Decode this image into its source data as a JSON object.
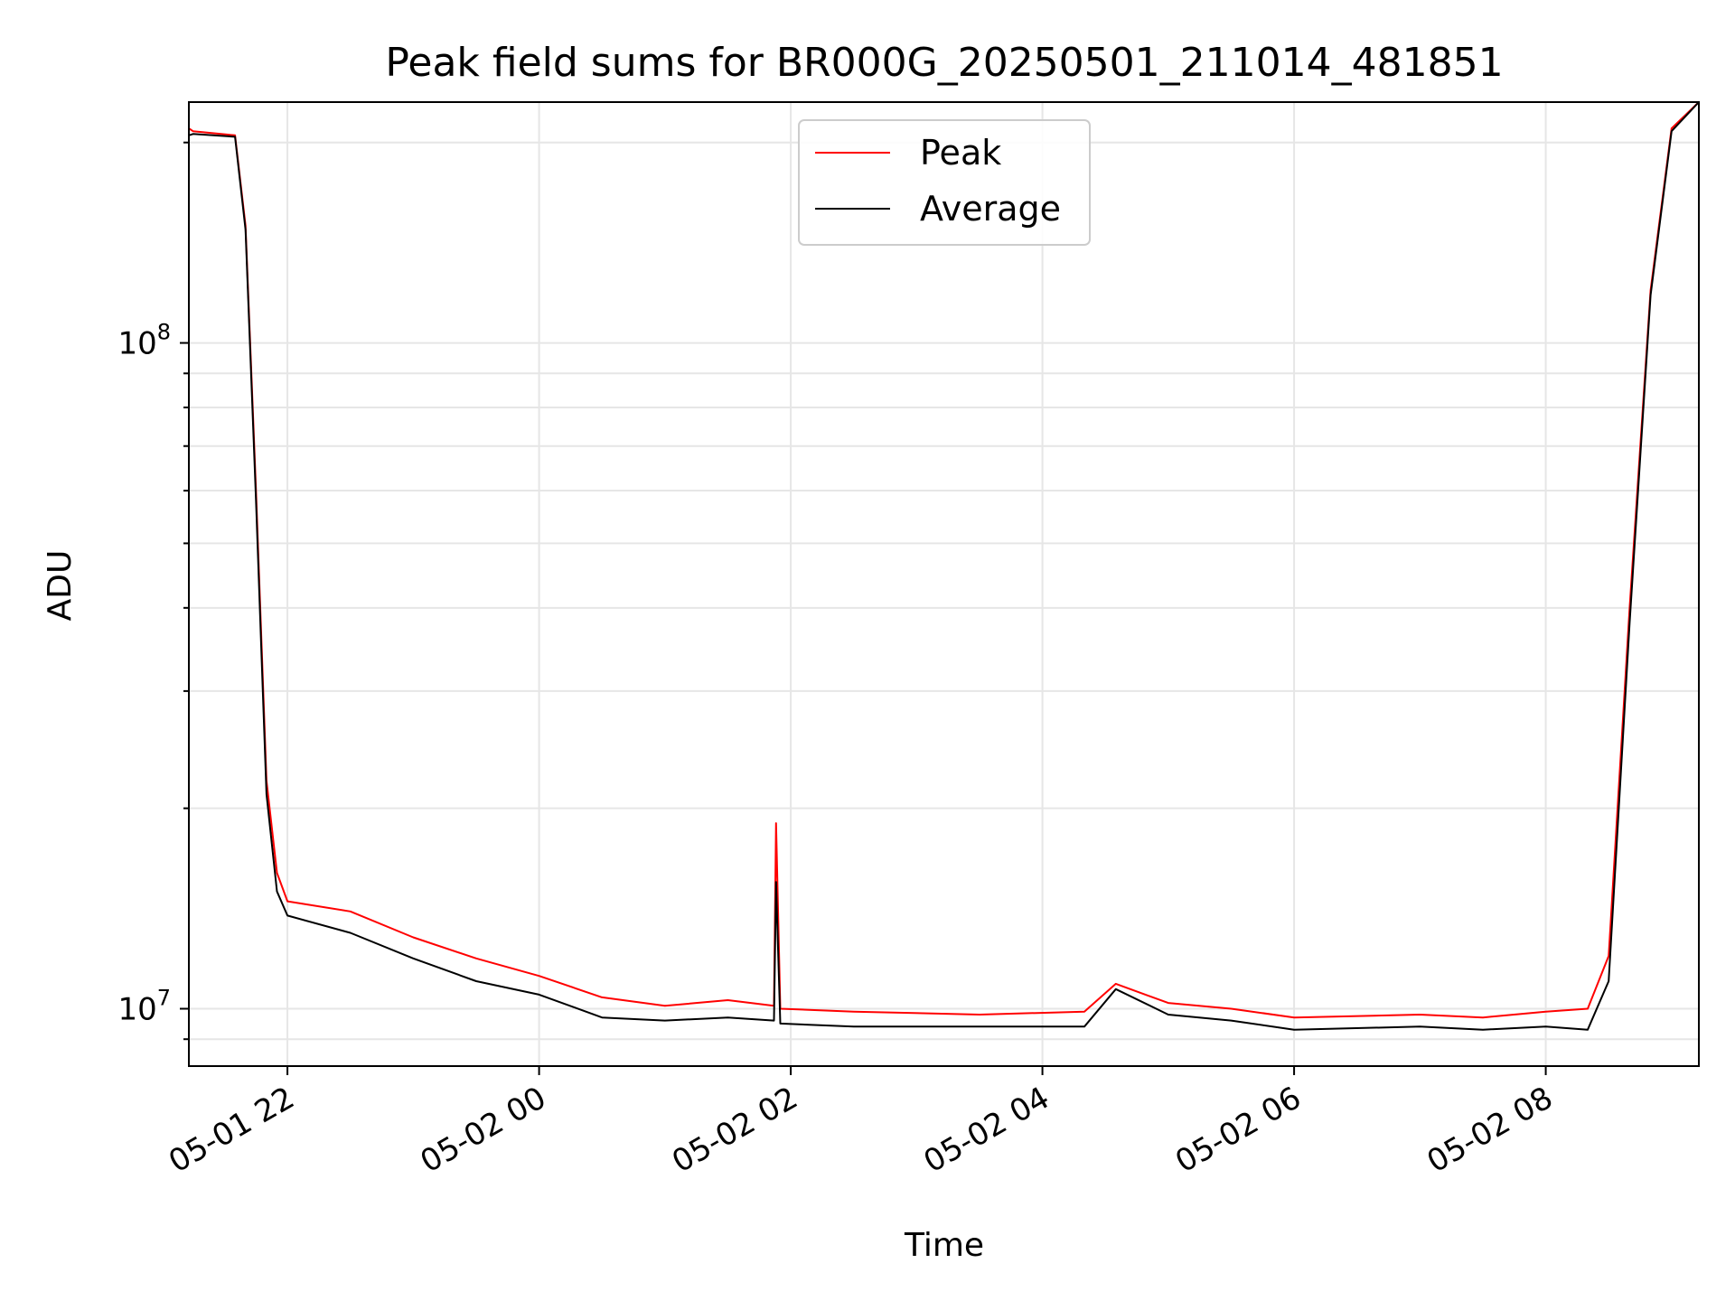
{
  "chart_data": {
    "type": "line",
    "title": "Peak field sums for BR000G_20250501_211014_481851",
    "xlabel": "Time",
    "ylabel": "ADU",
    "y_scale": "log",
    "ylim": [
      8200000,
      230000000
    ],
    "xlim": [
      "2025-05-01T21:13",
      "2025-05-02T09:13"
    ],
    "x_tick_labels": [
      "05-01 22",
      "05-02 00",
      "05-02 02",
      "05-02 04",
      "05-02 06",
      "05-02 08"
    ],
    "x_ticks": [
      "2025-05-01T22:00",
      "2025-05-02T00:00",
      "2025-05-02T02:00",
      "2025-05-02T04:00",
      "2025-05-02T06:00",
      "2025-05-02T08:00"
    ],
    "y_tick_labels": [
      {
        "value": 10000000,
        "base": "10",
        "exp": "7"
      },
      {
        "value": 100000000,
        "base": "10",
        "exp": "8"
      }
    ],
    "grid": true,
    "legend_position": "top-center",
    "series": [
      {
        "name": "Peak",
        "color": "#ff0000",
        "x": [
          "2025-05-01T21:13",
          "2025-05-01T21:15",
          "2025-05-01T21:35",
          "2025-05-01T21:40",
          "2025-05-01T21:45",
          "2025-05-01T21:50",
          "2025-05-01T21:55",
          "2025-05-01T22:00",
          "2025-05-01T22:30",
          "2025-05-01T23:00",
          "2025-05-01T23:30",
          "2025-05-02T00:00",
          "2025-05-02T00:30",
          "2025-05-02T01:00",
          "2025-05-02T01:30",
          "2025-05-02T01:52",
          "2025-05-02T01:53",
          "2025-05-02T01:55",
          "2025-05-02T02:30",
          "2025-05-02T03:30",
          "2025-05-02T04:20",
          "2025-05-02T04:35",
          "2025-05-02T05:00",
          "2025-05-02T05:30",
          "2025-05-02T06:00",
          "2025-05-02T07:00",
          "2025-05-02T07:30",
          "2025-05-02T08:00",
          "2025-05-02T08:20",
          "2025-05-02T08:30",
          "2025-05-02T08:40",
          "2025-05-02T08:50",
          "2025-05-02T09:00",
          "2025-05-02T09:13"
        ],
        "y": [
          210000000,
          208000000,
          205000000,
          150000000,
          60000000,
          22000000,
          16000000,
          14500000,
          14000000,
          12800000,
          11900000,
          11200000,
          10400000,
          10100000,
          10300000,
          10100000,
          19000000,
          10000000,
          9900000,
          9800000,
          9900000,
          10900000,
          10200000,
          10000000,
          9700000,
          9800000,
          9700000,
          9900000,
          10000000,
          12000000,
          40000000,
          120000000,
          210000000,
          230000000
        ]
      },
      {
        "name": "Average",
        "color": "#000000",
        "x": [
          "2025-05-01T21:13",
          "2025-05-01T21:15",
          "2025-05-01T21:35",
          "2025-05-01T21:40",
          "2025-05-01T21:45",
          "2025-05-01T21:50",
          "2025-05-01T21:55",
          "2025-05-01T22:00",
          "2025-05-01T22:30",
          "2025-05-01T23:00",
          "2025-05-01T23:30",
          "2025-05-02T00:00",
          "2025-05-02T00:30",
          "2025-05-02T01:00",
          "2025-05-02T01:30",
          "2025-05-02T01:52",
          "2025-05-02T01:53",
          "2025-05-02T01:55",
          "2025-05-02T02:30",
          "2025-05-02T03:30",
          "2025-05-02T04:20",
          "2025-05-02T04:35",
          "2025-05-02T05:00",
          "2025-05-02T05:30",
          "2025-05-02T06:00",
          "2025-05-02T07:00",
          "2025-05-02T07:30",
          "2025-05-02T08:00",
          "2025-05-02T08:20",
          "2025-05-02T08:30",
          "2025-05-02T08:40",
          "2025-05-02T08:50",
          "2025-05-02T09:00",
          "2025-05-02T09:13"
        ],
        "y": [
          205000000,
          206000000,
          204000000,
          148000000,
          58000000,
          21000000,
          15000000,
          13800000,
          13000000,
          11900000,
          11000000,
          10500000,
          9700000,
          9600000,
          9700000,
          9600000,
          15500000,
          9500000,
          9400000,
          9400000,
          9400000,
          10700000,
          9800000,
          9600000,
          9300000,
          9400000,
          9300000,
          9400000,
          9300000,
          11000000,
          38000000,
          118000000,
          208000000,
          230000000
        ]
      }
    ]
  }
}
